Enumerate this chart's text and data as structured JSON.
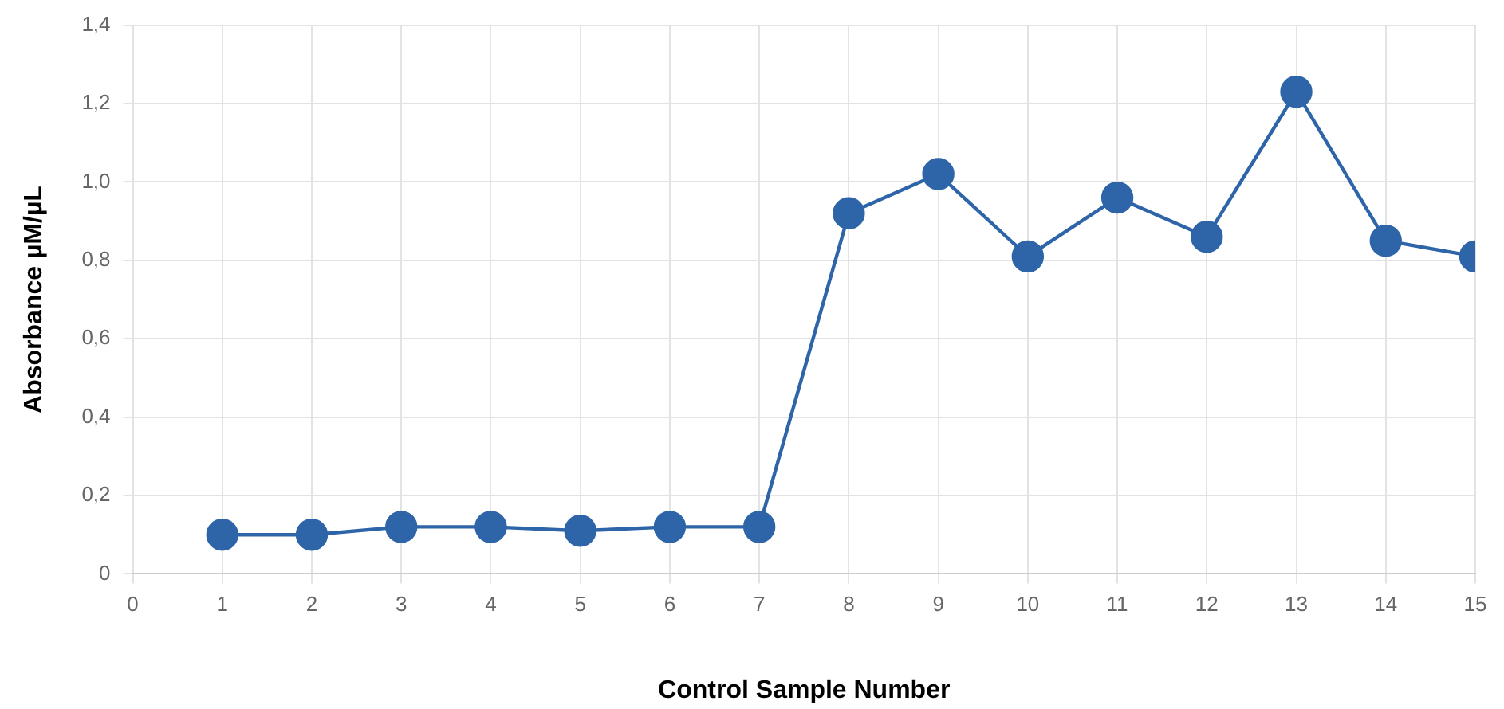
{
  "chart_data": {
    "type": "line",
    "xlabel": "Control Sample Number",
    "ylabel": "Absorbance µM/µL",
    "x": [
      1,
      2,
      3,
      4,
      5,
      6,
      7,
      8,
      9,
      10,
      11,
      12,
      13,
      14,
      15
    ],
    "series": [
      {
        "color": "#2e64a8",
        "values": [
          0.1,
          0.1,
          0.12,
          0.12,
          0.11,
          0.12,
          0.12,
          0.92,
          1.02,
          0.81,
          0.96,
          0.86,
          1.23,
          0.85,
          0.81
        ]
      }
    ],
    "xlim": [
      0,
      15
    ],
    "xticks": [
      0,
      1,
      2,
      3,
      4,
      5,
      6,
      7,
      8,
      9,
      10,
      11,
      12,
      13,
      14,
      15
    ],
    "ylim": [
      0,
      1.4
    ],
    "yticks": [
      0,
      {
        "value": 0.2,
        "label": "0,2"
      },
      {
        "value": 0.4,
        "label": "0,4"
      },
      {
        "value": 0.6,
        "label": "0,6"
      },
      {
        "value": 0.8,
        "label": "0,8"
      },
      {
        "value": 1.0,
        "label": "1,0"
      },
      {
        "value": 1.2,
        "label": "1,2"
      },
      {
        "value": 1.4,
        "label": "1,4"
      }
    ],
    "grid": true,
    "legend": false,
    "marker": "circle",
    "line_style": "solid"
  }
}
